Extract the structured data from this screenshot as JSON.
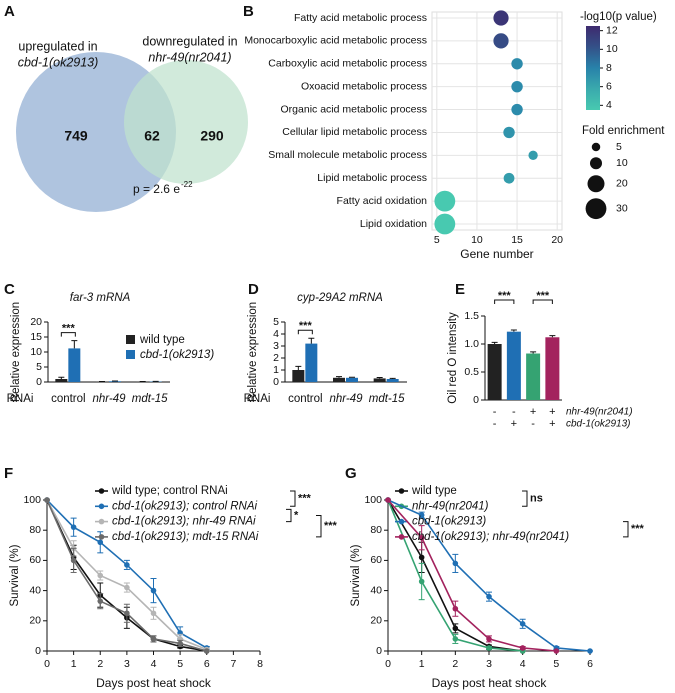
{
  "chart_data": [
    {
      "panel": "A",
      "type": "venn",
      "sets": [
        {
          "label_lines": [
            "upregulated in",
            "cbd-1(ok2913)"
          ],
          "count": 749,
          "color": "#a6bedb"
        },
        {
          "label_lines": [
            "downregulated in",
            "nhr-49(nr2041)"
          ],
          "count": 290,
          "color": "#bfe2cd"
        }
      ],
      "overlap": 62,
      "p_label": "p = 2.6 e",
      "p_exponent": "-22"
    },
    {
      "panel": "B",
      "type": "scatter",
      "categories": [
        "Fatty acid metabolic process",
        "Monocarboxylic acid metabolic process",
        "Carboxylic acid metabolic process",
        "Oxoacid metabolic process",
        "Organic acid metabolic process",
        "Cellular lipid metabolic process",
        "Small molecule metabolic process",
        "Lipid metabolic process",
        "Fatty acid oxidation",
        "Lipid oxidation"
      ],
      "x": [
        13,
        13,
        15,
        15,
        15,
        14,
        17,
        14,
        6,
        6
      ],
      "color_values": [
        11.5,
        10.5,
        7.5,
        7.5,
        7.5,
        7,
        6.5,
        6.5,
        4,
        4
      ],
      "sizes": [
        16,
        16,
        9,
        9,
        9,
        9,
        6,
        8,
        30,
        30
      ],
      "xlim": [
        4.4,
        20.6
      ],
      "xticks": [
        5,
        10,
        15,
        20
      ],
      "xlabel": "Gene number",
      "grid": true,
      "color_title": "-log10(p value)",
      "color_lim": [
        3.5,
        12.5
      ],
      "color_ticks": [
        4,
        6,
        8,
        10,
        12
      ],
      "size_title": "Fold enrichment",
      "size_ticks": [
        5,
        10,
        20,
        30
      ]
    },
    {
      "panel": "C",
      "type": "bar",
      "title": "far-3 mRNA",
      "ylabel": "Relative expression",
      "xprefix": "RNAi",
      "categories": [
        "control",
        "nhr-49",
        "mdt-15"
      ],
      "series": [
        {
          "name": "wild type",
          "color": "#222222",
          "values": [
            1,
            0.1,
            0.1
          ],
          "errors": [
            0.6,
            0.05,
            0.05
          ]
        },
        {
          "name": "cbd-1(ok2913)",
          "color": "#1f6fb4",
          "values": [
            11.2,
            0.25,
            0.15
          ],
          "errors": [
            2.6,
            0.1,
            0.05
          ]
        }
      ],
      "ylim": [
        0,
        20
      ],
      "yticks": [
        0,
        5,
        10,
        15,
        20
      ],
      "annotations": [
        "***"
      ],
      "legend": "upper right"
    },
    {
      "panel": "D",
      "type": "bar",
      "title": "cyp-29A2 mRNA",
      "ylabel": "Relative expression",
      "xprefix": "RNAi",
      "categories": [
        "control",
        "nhr-49",
        "mdt-15"
      ],
      "series": [
        {
          "color": "#222222",
          "values": [
            1,
            0.35,
            0.3
          ],
          "errors": [
            0.3,
            0.1,
            0.08
          ]
        },
        {
          "color": "#1f6fb4",
          "values": [
            3.2,
            0.35,
            0.25
          ],
          "errors": [
            0.45,
            0.05,
            0.05
          ]
        }
      ],
      "ylim": [
        0,
        5
      ],
      "yticks": [
        0,
        1,
        2,
        3,
        4,
        5
      ],
      "annotations": [
        "***"
      ]
    },
    {
      "panel": "E",
      "type": "bar",
      "ylabel": "Oil red O intensity",
      "values": [
        1.0,
        1.22,
        0.83,
        1.12
      ],
      "errors": [
        0.03,
        0.03,
        0.03,
        0.03
      ],
      "colors": [
        "#222222",
        "#1f6fb4",
        "#35a372",
        "#a3235e"
      ],
      "ylim": [
        0,
        1.5
      ],
      "yticks": [
        0,
        0.5,
        {
          "value": 1,
          "label": "1.0"
        },
        1.5
      ],
      "genotype": [
        {
          "label": "nhr-49(nr2041)",
          "signs": [
            "-",
            "-",
            "+",
            "+"
          ]
        },
        {
          "label": "cbd-1(ok2913)",
          "signs": [
            "-",
            "+",
            "-",
            "+"
          ]
        }
      ],
      "annotations": [
        "***",
        "***"
      ]
    },
    {
      "panel": "F",
      "type": "line",
      "xlabel": "Days post heat shock",
      "ylabel": "Survival (%)",
      "x": [
        0,
        1,
        2,
        3,
        4,
        5,
        6
      ],
      "series": [
        {
          "name": "wild type; control RNAi",
          "color": "#111111",
          "values": [
            100,
            62,
            37,
            22,
            8,
            3,
            0
          ],
          "errors": [
            0,
            8,
            8,
            7,
            2,
            1,
            0
          ]
        },
        {
          "name": "cbd-1(ok2913); control RNAi",
          "color": "#1f6fb4",
          "values": [
            100,
            82,
            72,
            57,
            40,
            12,
            2
          ],
          "errors": [
            0,
            6,
            7,
            3,
            8,
            4,
            1
          ]
        },
        {
          "name": "cbd-1(ok2913); nhr-49 RNAi",
          "color": "#b5b5b5",
          "values": [
            100,
            68,
            50,
            42,
            25,
            8,
            1
          ],
          "errors": [
            0,
            5,
            3,
            3,
            4,
            3,
            1
          ]
        },
        {
          "name": "cbd-1(ok2913); mdt-15 RNAi",
          "color": "#6a6a6a",
          "values": [
            100,
            60,
            33,
            25,
            8,
            5,
            0
          ],
          "errors": [
            0,
            8,
            5,
            6,
            2,
            2,
            0
          ]
        }
      ],
      "xlim": [
        0,
        8
      ],
      "xticks": [
        0,
        1,
        2,
        3,
        4,
        5,
        6,
        7,
        8
      ],
      "ylim": [
        0,
        100
      ],
      "yticks": [
        0,
        20,
        40,
        60,
        80,
        100
      ],
      "annotations": [
        "***",
        "*",
        "***"
      ]
    },
    {
      "panel": "G",
      "type": "line",
      "xlabel": "Days post heat shock",
      "ylabel": "Survival (%)",
      "x": [
        0,
        1,
        2,
        3,
        4,
        5,
        6
      ],
      "series": [
        {
          "name": "wild type",
          "color": "#111111",
          "values": [
            100,
            62,
            15,
            3,
            0,
            null,
            null
          ],
          "errors": [
            0,
            10,
            3,
            1,
            0,
            null,
            null
          ]
        },
        {
          "name": "nhr-49(nr2041)",
          "color": "#35a372",
          "values": [
            100,
            46,
            8,
            2,
            0,
            null,
            null
          ],
          "errors": [
            0,
            12,
            3,
            1,
            0,
            null,
            null
          ]
        },
        {
          "name": "cbd-1(ok2913)",
          "color": "#1f6fb4",
          "values": [
            100,
            90,
            58,
            36,
            18,
            2,
            0
          ],
          "errors": [
            0,
            2,
            6,
            3,
            3,
            1,
            0
          ]
        },
        {
          "name": "cbd-1(ok2913); nhr-49(nr2041)",
          "color": "#a3235e",
          "values": [
            100,
            75,
            28,
            8,
            2,
            0,
            null
          ],
          "errors": [
            0,
            8,
            5,
            2,
            1,
            0,
            null
          ]
        }
      ],
      "xlim": [
        0,
        6
      ],
      "xticks": [
        0,
        1,
        2,
        3,
        4,
        5,
        6
      ],
      "ylim": [
        0,
        100
      ],
      "yticks": [
        0,
        20,
        40,
        60,
        80,
        100
      ],
      "annotations": [
        "ns",
        "***"
      ]
    }
  ]
}
